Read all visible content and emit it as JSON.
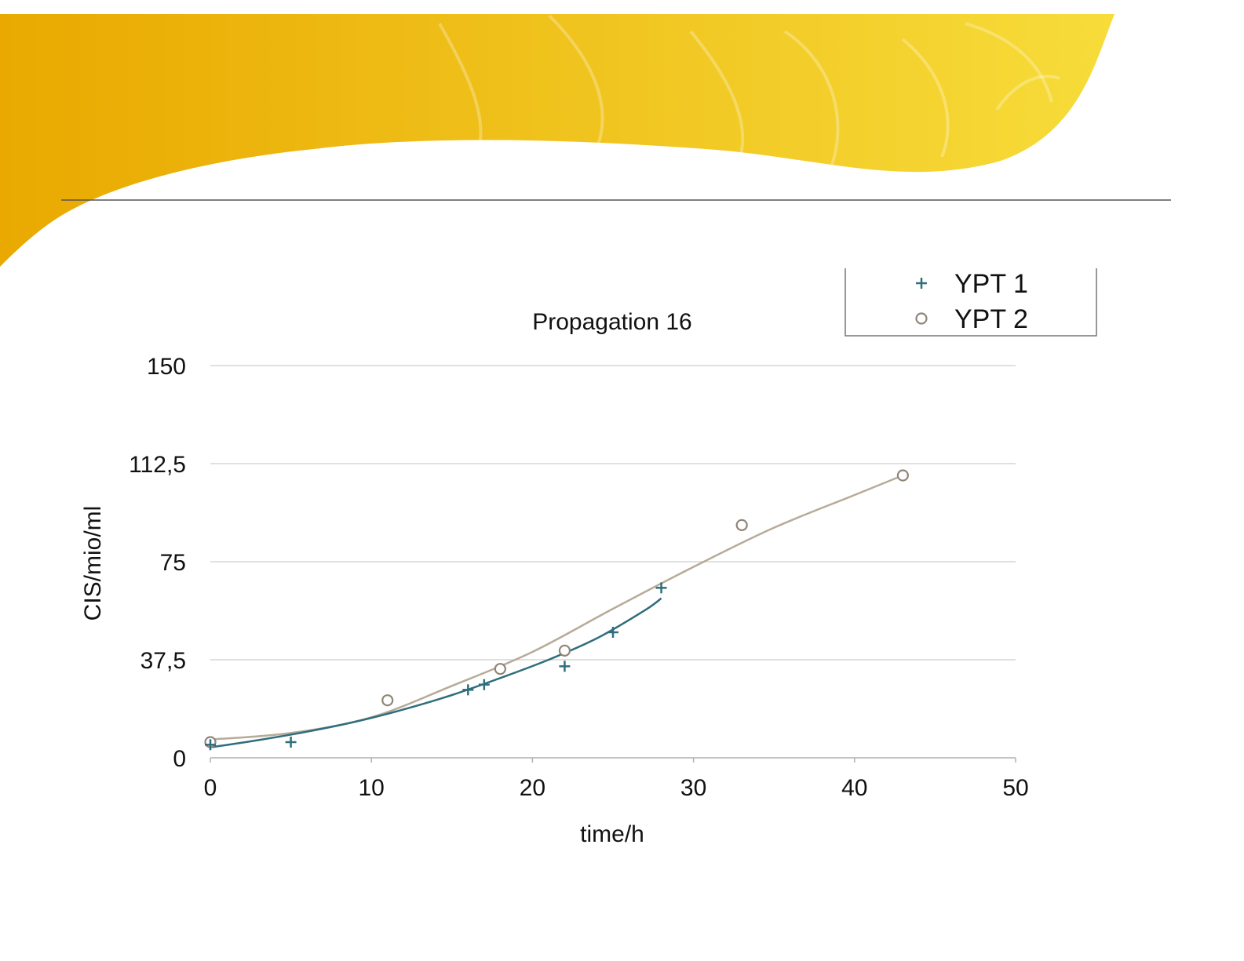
{
  "colors": {
    "banner_light": "#f7dc3a",
    "banner_dark": "#e9a900",
    "ypt1": "#2f6e7d",
    "ypt2": "#b7aa98",
    "grid": "#d6d6d6",
    "axis": "#b0b0b0"
  },
  "chart_data": {
    "type": "scatter",
    "title": "Propagation 16",
    "xlabel": "time/h",
    "ylabel": "CIS/mio/ml",
    "xlim": [
      0,
      50
    ],
    "ylim": [
      0,
      150
    ],
    "x_ticks": [
      "0",
      "10",
      "20",
      "30",
      "40",
      "50"
    ],
    "y_ticks": [
      "0",
      "37,5",
      "75",
      "112,5",
      "150"
    ],
    "grid": "horizontal",
    "legend_position": "top-right",
    "series": [
      {
        "name": "YPT 1",
        "marker": "plus",
        "x": [
          0,
          5,
          16,
          17,
          22,
          25,
          28
        ],
        "y": [
          5,
          6,
          26,
          28,
          35,
          48,
          65
        ],
        "trend": "polynomial",
        "trend_x": [
          0,
          3,
          6,
          9,
          12,
          15,
          18,
          21,
          24,
          27,
          28
        ],
        "trend_y": [
          4,
          6.8,
          10,
          13.8,
          18.5,
          24,
          30.5,
          37.5,
          45.7,
          56.5,
          61
        ]
      },
      {
        "name": "YPT 2",
        "marker": "circle",
        "x": [
          0,
          11,
          18,
          22,
          33,
          43
        ],
        "y": [
          6,
          22,
          34,
          41,
          89,
          108
        ],
        "trend": "polynomial",
        "trend_x": [
          0,
          5,
          10,
          15,
          20,
          25,
          30,
          35,
          40,
          43
        ],
        "trend_y": [
          7,
          9.5,
          15.5,
          27.5,
          40.5,
          57,
          73,
          88,
          100.5,
          108
        ]
      }
    ]
  }
}
